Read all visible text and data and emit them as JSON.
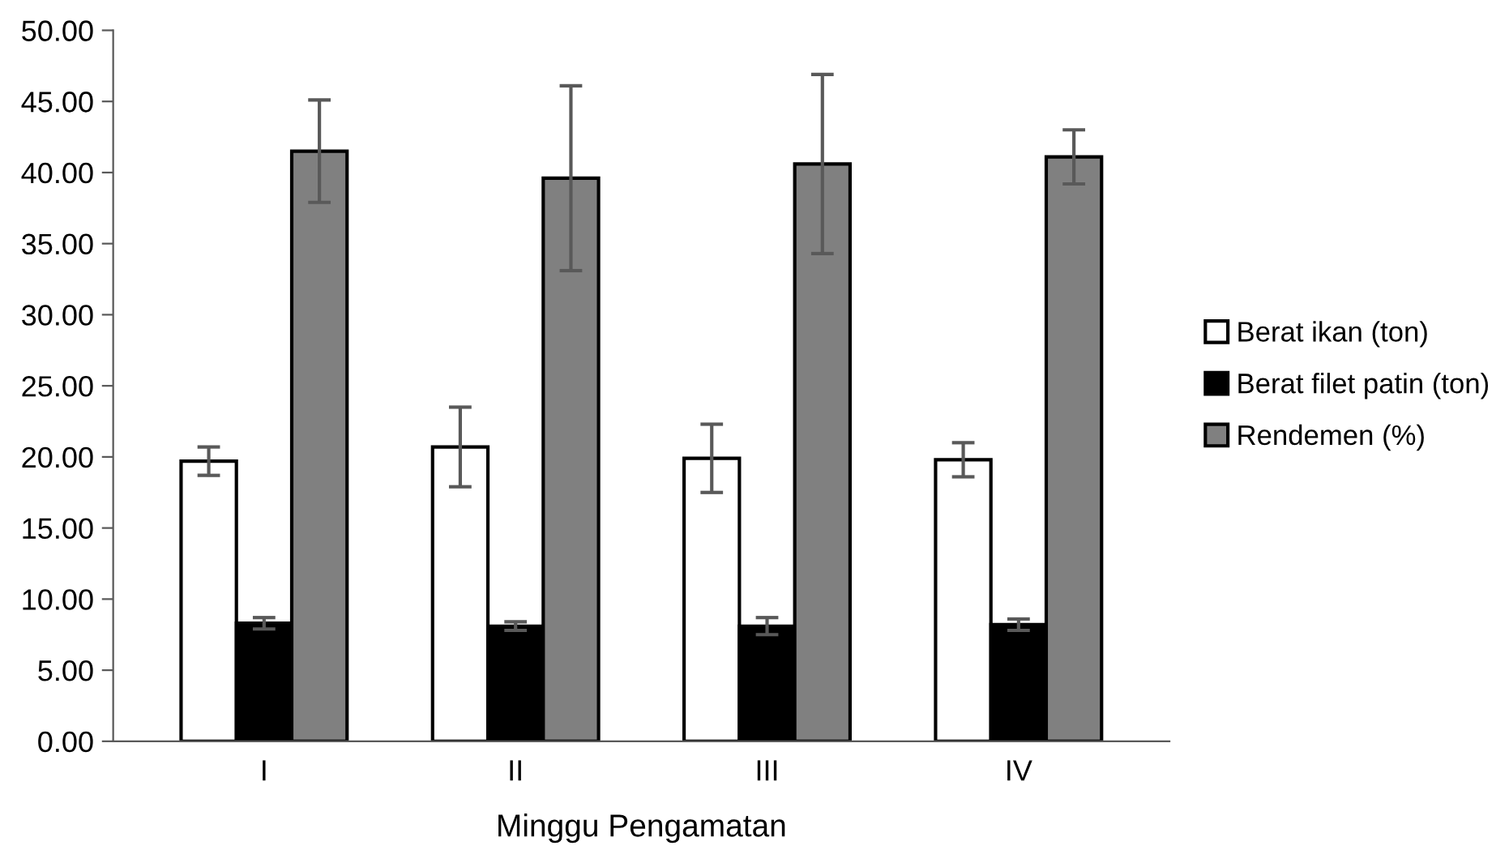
{
  "chart_data": {
    "type": "bar",
    "xlabel": "Minggu Pengamatan",
    "categories": [
      "I",
      "II",
      "III",
      "IV"
    ],
    "series": [
      {
        "name": "Berat ikan (ton)",
        "color": "#ffffff",
        "values": [
          19.7,
          20.7,
          19.9,
          19.8
        ],
        "errors": [
          1.0,
          2.8,
          2.4,
          1.2
        ]
      },
      {
        "name": "Berat filet patin (ton)",
        "color": "#000000",
        "values": [
          8.3,
          8.1,
          8.1,
          8.2
        ],
        "errors": [
          0.4,
          0.3,
          0.6,
          0.4
        ]
      },
      {
        "name": "Rendemen (%)",
        "color": "#808080",
        "values": [
          41.5,
          39.6,
          40.6,
          41.1
        ],
        "errors": [
          3.6,
          6.5,
          6.3,
          1.9
        ]
      }
    ],
    "ylim": [
      0,
      50
    ],
    "yticks": [
      {
        "value": 0,
        "label": "0.00"
      },
      {
        "value": 5,
        "label": "5.00"
      },
      {
        "value": 10,
        "label": "10.00"
      },
      {
        "value": 15,
        "label": "15.00"
      },
      {
        "value": 20,
        "label": "20.00"
      },
      {
        "value": 25,
        "label": "25.00"
      },
      {
        "value": 30,
        "label": "30.00"
      },
      {
        "value": 35,
        "label": "35.00"
      },
      {
        "value": 40,
        "label": "40.00"
      },
      {
        "value": 45,
        "label": "45.00"
      },
      {
        "value": 50,
        "label": "50.00"
      }
    ],
    "grid": false,
    "legend": "right"
  }
}
